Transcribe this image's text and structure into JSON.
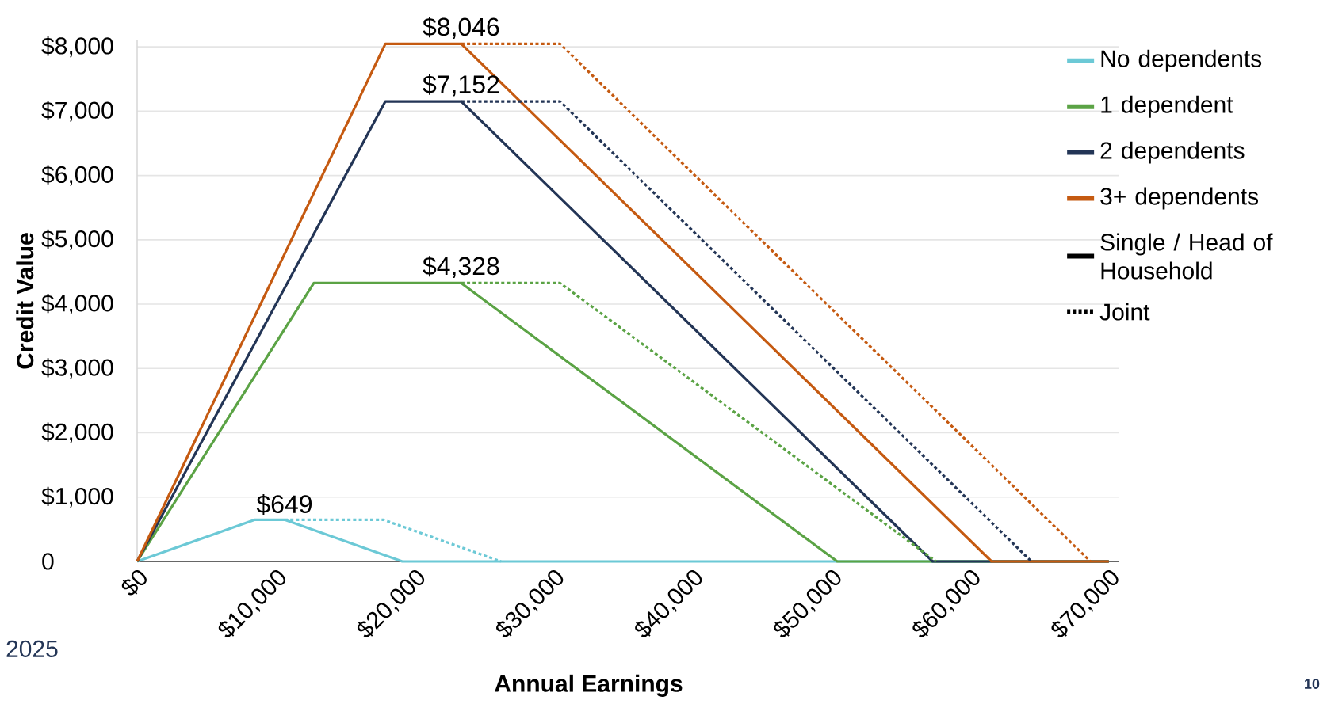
{
  "chart_data": {
    "type": "line",
    "xlabel": "Annual Earnings",
    "ylabel": "Credit Value",
    "xlim": [
      0,
      70700
    ],
    "ylim": [
      0,
      8100
    ],
    "xticks": [
      {
        "value": 0,
        "label": "$0"
      },
      {
        "value": 10000,
        "label": "$10,000"
      },
      {
        "value": 20000,
        "label": "$20,000"
      },
      {
        "value": 30000,
        "label": "$30,000"
      },
      {
        "value": 40000,
        "label": "$40,000"
      },
      {
        "value": 50000,
        "label": "$50,000"
      },
      {
        "value": 60000,
        "label": "$60,000"
      },
      {
        "value": 70000,
        "label": "$70,000"
      }
    ],
    "yticks": [
      {
        "value": 0,
        "label": "0"
      },
      {
        "value": 1000,
        "label": "$1,000"
      },
      {
        "value": 2000,
        "label": "$2,000"
      },
      {
        "value": 3000,
        "label": "$3,000"
      },
      {
        "value": 4000,
        "label": "$4,000"
      },
      {
        "value": 5000,
        "label": "$5,000"
      },
      {
        "value": 6000,
        "label": "$6,000"
      },
      {
        "value": 7000,
        "label": "$7,000"
      },
      {
        "value": 8000,
        "label": "$8,000"
      }
    ],
    "grid": "y",
    "legend": "top right",
    "series": [
      {
        "name": "No dependents",
        "color": "#6cc9d6",
        "line_style": "solid",
        "x": [
          0,
          8490,
          10620,
          19104,
          70000
        ],
        "values": [
          0,
          649,
          649,
          0,
          0
        ],
        "value_labels": [
          null,
          null,
          "$649",
          null,
          null
        ]
      },
      {
        "name": "1 dependent",
        "color": "#5ba345",
        "line_style": "solid",
        "x": [
          0,
          12730,
          23350,
          50434,
          70000
        ],
        "values": [
          0,
          4328,
          4328,
          0,
          0
        ],
        "value_labels": [
          null,
          null,
          "$4,328",
          null,
          null
        ]
      },
      {
        "name": "2 dependents",
        "color": "#233556",
        "line_style": "solid",
        "x": [
          0,
          17880,
          23350,
          57310,
          70000
        ],
        "values": [
          0,
          7152,
          7152,
          0,
          0
        ],
        "value_labels": [
          null,
          null,
          "$7,152",
          null,
          null
        ]
      },
      {
        "name": "3+ dependents",
        "color": "#c55a11",
        "line_style": "solid",
        "x": [
          0,
          17880,
          23350,
          61555,
          70000
        ],
        "values": [
          0,
          8046,
          8046,
          0,
          0
        ],
        "value_labels": [
          null,
          null,
          "$8,046",
          null,
          null
        ]
      },
      {
        "color": "#6cc9d6",
        "line_style": "dotted",
        "x": [
          10620,
          17730,
          26214
        ],
        "values": [
          649,
          649,
          0
        ]
      },
      {
        "color": "#5ba345",
        "line_style": "dotted",
        "x": [
          23350,
          30470,
          57554
        ],
        "values": [
          4328,
          4328,
          0
        ]
      },
      {
        "color": "#233556",
        "line_style": "dotted",
        "x": [
          23350,
          30470,
          64430
        ],
        "values": [
          7152,
          7152,
          0
        ]
      },
      {
        "color": "#c55a11",
        "line_style": "dotted",
        "x": [
          23350,
          30470,
          68675
        ],
        "values": [
          8046,
          8046,
          0
        ]
      },
      {
        "name": "Single / Head of Household",
        "color": "#000000",
        "line_style": "solid"
      },
      {
        "name": "Joint",
        "color": "#000000",
        "line_style": "dotted"
      }
    ],
    "annotations": [
      "2025",
      "10"
    ]
  }
}
